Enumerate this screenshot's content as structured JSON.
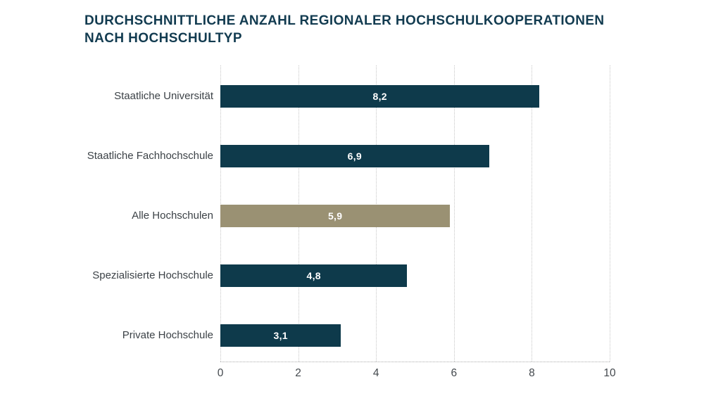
{
  "chart_data": {
    "type": "bar",
    "orientation": "horizontal",
    "title": "DURCHSCHNITTLICHE ANZAHL REGIONALER HOCHSCHULKOOPERATIONEN NACH HOCHSCHULTYP",
    "categories": [
      "Staatliche Universität",
      "Staatliche Fachhochschule",
      "Alle Hochschulen",
      "Spezialisierte Hochschule",
      "Private Hochschule"
    ],
    "values": [
      8.2,
      6.9,
      5.9,
      4.8,
      3.1
    ],
    "value_labels": [
      "8,2",
      "6,9",
      "5,9",
      "4,8",
      "3,1"
    ],
    "xlabel": "",
    "ylabel": "",
    "xlim": [
      0,
      10
    ],
    "x_ticks": [
      "0",
      "2",
      "4",
      "6",
      "8",
      "10"
    ],
    "x_tick_values": [
      0,
      2,
      4,
      6,
      8,
      10
    ],
    "grid": "vertical dotted gridlines",
    "legend": "none",
    "highlight_index": 2,
    "highlight_category": "Alle Hochschulen"
  },
  "colors": {
    "bar": "#0e3a4b",
    "bar_highlight": "#9a9173",
    "title": "#123b50",
    "category_label": "#3c4247",
    "value_label": "#ffffff",
    "gridline": "#c6c6c6",
    "axis_line": "#ababab",
    "tick_label": "#43484d",
    "background": "#ffffff"
  }
}
